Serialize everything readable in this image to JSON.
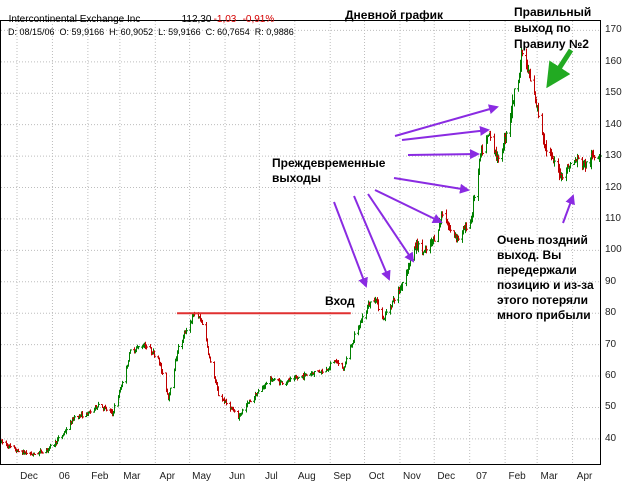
{
  "header": {
    "symbol_name": "Intercontinental Exchange Inc",
    "last": "112,30",
    "change": "-1,03",
    "change_pct": "-0,91%",
    "ohlc_line": "D: 08/15/06  O: 59,9166  H: 60,9052  L: 59,9166  C: 60,7654  R: 0,9886",
    "title": "Дневной график"
  },
  "annotations": {
    "correct_exit": "Правильный выход по Правилу №2",
    "premature_exits": "Преждевременные выходы",
    "entry": "Вход",
    "late_exit": "Очень поздний выход. Вы передержали позицию и из-за этого потеряли много прибыли"
  },
  "colors": {
    "up_bar": "#008000",
    "down_bar": "#c00000",
    "entry_line": "#e03030",
    "arrow_purple": "#8a2be2",
    "arrow_green": "#22aa22",
    "grid": "#bdbdbd"
  },
  "chart_data": {
    "type": "ohlc",
    "y_ticks": [
      "40",
      "50",
      "60",
      "70",
      "80",
      "90",
      "100",
      "110",
      "120",
      "130",
      "140",
      "150",
      "160",
      "170"
    ],
    "ylim": [
      32,
      173
    ],
    "x_labels": [
      "Dec",
      "06",
      "Feb",
      "Mar",
      "Apr",
      "May",
      "Jun",
      "Jul",
      "Aug",
      "Sep",
      "Oct",
      "Nov",
      "Dec",
      "07",
      "Feb",
      "Mar",
      "Apr"
    ],
    "xlim": [
      "2005-11-17",
      "2007-04-25"
    ],
    "entry_level": 80,
    "path": [
      [
        "2005-11-17",
        39
      ],
      [
        "2005-12-01",
        36
      ],
      [
        "2005-12-15",
        35
      ],
      [
        "2005-12-29",
        37
      ],
      [
        "2006-01-09",
        41
      ],
      [
        "2006-01-20",
        47
      ],
      [
        "2006-02-01",
        48
      ],
      [
        "2006-02-10",
        51
      ],
      [
        "2006-02-22",
        48
      ],
      [
        "2006-03-02",
        57
      ],
      [
        "2006-03-10",
        68
      ],
      [
        "2006-03-22",
        70
      ],
      [
        "2006-04-03",
        66
      ],
      [
        "2006-04-12",
        53
      ],
      [
        "2006-04-20",
        68
      ],
      [
        "2006-04-28",
        75
      ],
      [
        "2006-05-05",
        80
      ],
      [
        "2006-05-12",
        77
      ],
      [
        "2006-05-19",
        64
      ],
      [
        "2006-05-26",
        54
      ],
      [
        "2006-06-05",
        50
      ],
      [
        "2006-06-12",
        47
      ],
      [
        "2006-06-20",
        51
      ],
      [
        "2006-06-30",
        55
      ],
      [
        "2006-07-10",
        59
      ],
      [
        "2006-07-20",
        58
      ],
      [
        "2006-08-01",
        59
      ],
      [
        "2006-08-15",
        61
      ],
      [
        "2006-08-28",
        62
      ],
      [
        "2006-09-05",
        65
      ],
      [
        "2006-09-12",
        62
      ],
      [
        "2006-09-19",
        70
      ],
      [
        "2006-09-26",
        76
      ],
      [
        "2006-10-03",
        82
      ],
      [
        "2006-10-10",
        85
      ],
      [
        "2006-10-17",
        78
      ],
      [
        "2006-10-24",
        83
      ],
      [
        "2006-11-01",
        88
      ],
      [
        "2006-11-08",
        95
      ],
      [
        "2006-11-15",
        102
      ],
      [
        "2006-11-22",
        99
      ],
      [
        "2006-12-01",
        104
      ],
      [
        "2006-12-08",
        112
      ],
      [
        "2006-12-15",
        106
      ],
      [
        "2006-12-22",
        104
      ],
      [
        "2007-01-02",
        110
      ],
      [
        "2007-01-10",
        130
      ],
      [
        "2007-01-18",
        137
      ],
      [
        "2007-01-26",
        128
      ],
      [
        "2007-02-02",
        138
      ],
      [
        "2007-02-09",
        150
      ],
      [
        "2007-02-16",
        163
      ],
      [
        "2007-02-22",
        155
      ],
      [
        "2007-03-01",
        145
      ],
      [
        "2007-03-08",
        133
      ],
      [
        "2007-03-15",
        128
      ],
      [
        "2007-03-22",
        124
      ],
      [
        "2007-03-29",
        127
      ],
      [
        "2007-04-05",
        129
      ],
      [
        "2007-04-12",
        127
      ],
      [
        "2007-04-19",
        130
      ],
      [
        "2007-04-25",
        131
      ]
    ]
  }
}
